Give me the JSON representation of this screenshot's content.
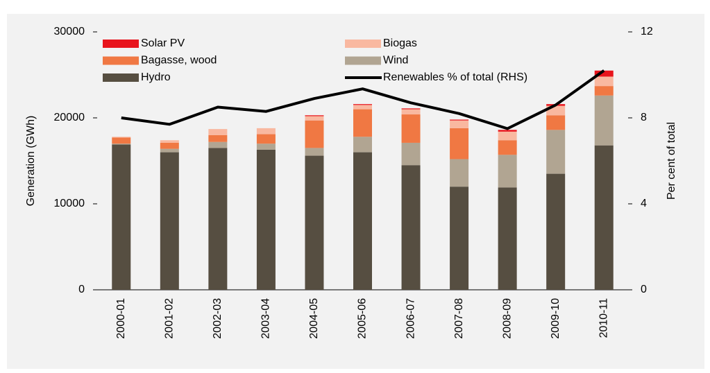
{
  "chart_data": {
    "type": "bar",
    "categories": [
      "2000-01",
      "2001-02",
      "2002-03",
      "2003-04",
      "2004-05",
      "2005-06",
      "2006-07",
      "2007-08",
      "2008-09",
      "2009-10",
      "2010-11"
    ],
    "series": [
      {
        "name": "Hydro",
        "color": "#564e41",
        "values": [
          16900,
          16000,
          16500,
          16300,
          15600,
          16000,
          14500,
          12000,
          11900,
          13500,
          16800
        ]
      },
      {
        "name": "Wind",
        "color": "#b1a592",
        "values": [
          100,
          400,
          700,
          700,
          900,
          1800,
          2600,
          3200,
          3800,
          5100,
          5800
        ]
      },
      {
        "name": "Bagasse, wood",
        "color": "#f07843",
        "values": [
          700,
          700,
          800,
          1100,
          3200,
          3200,
          3300,
          3600,
          1700,
          1700,
          1100
        ]
      },
      {
        "name": "Biogas",
        "color": "#f9b8a0",
        "values": [
          100,
          300,
          700,
          700,
          500,
          500,
          600,
          900,
          1000,
          1100,
          1100
        ]
      },
      {
        "name": "Solar PV",
        "color": "#e8141c",
        "values": [
          0,
          0,
          0,
          0,
          100,
          100,
          100,
          100,
          200,
          200,
          700
        ]
      },
      {
        "name": "Renewables % of total (RHS)",
        "color": "#000000",
        "type": "line",
        "axis": "y2",
        "values": [
          8.0,
          7.7,
          8.5,
          8.3,
          8.9,
          9.35,
          8.7,
          8.2,
          7.5,
          8.6,
          10.2
        ]
      }
    ],
    "y_label": "Generation (GWh)",
    "y2_label": "Per cent of total",
    "ylim": [
      0,
      30000
    ],
    "yticks": [
      0,
      10000,
      20000,
      30000
    ],
    "y2lim": [
      0,
      12
    ],
    "y2ticks": [
      0,
      4,
      8,
      12
    ],
    "stacked": true
  }
}
